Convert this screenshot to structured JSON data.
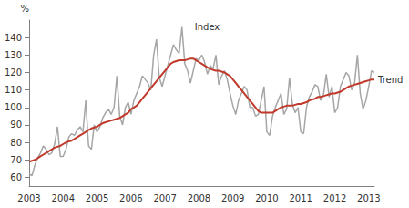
{
  "chart_data": {
    "type": "line",
    "y_label": "%",
    "categories": [
      "2003",
      null,
      null,
      null,
      null,
      null,
      null,
      null,
      null,
      null,
      null,
      null,
      "2004",
      null,
      null,
      null,
      null,
      null,
      null,
      null,
      null,
      null,
      null,
      null,
      "2005",
      null,
      null,
      null,
      null,
      null,
      null,
      null,
      null,
      null,
      null,
      null,
      "2006",
      null,
      null,
      null,
      null,
      null,
      null,
      null,
      null,
      null,
      null,
      null,
      "2007",
      null,
      null,
      null,
      null,
      null,
      null,
      null,
      null,
      null,
      null,
      null,
      "2008",
      null,
      null,
      null,
      null,
      null,
      null,
      null,
      null,
      null,
      null,
      null,
      "2009",
      null,
      null,
      null,
      null,
      null,
      null,
      null,
      null,
      null,
      null,
      null,
      "2010",
      null,
      null,
      null,
      null,
      null,
      null,
      null,
      null,
      null,
      null,
      null,
      "2011",
      null,
      null,
      null,
      null,
      null,
      null,
      null,
      null,
      null,
      null,
      null,
      "2012",
      null,
      null,
      null,
      null,
      null,
      null,
      null,
      null,
      null,
      null,
      null,
      "2013",
      null,
      null
    ],
    "series": [
      {
        "name": "Index",
        "color": "#a6a6a6",
        "values": [
          62,
          61,
          67,
          71,
          74,
          78,
          76,
          73,
          74,
          79,
          89,
          72,
          72,
          76,
          83,
          85,
          84,
          87,
          89,
          86,
          104,
          78,
          76,
          90,
          86,
          89,
          94,
          97,
          99,
          96,
          100,
          118,
          95,
          90,
          100,
          103,
          96,
          104,
          108,
          112,
          118,
          116,
          114,
          110,
          130,
          139,
          117,
          112,
          118,
          124,
          130,
          136,
          133,
          131,
          146,
          125,
          121,
          114,
          121,
          128,
          127,
          130,
          126,
          119,
          124,
          122,
          130,
          113,
          118,
          121,
          116,
          108,
          101,
          96,
          104,
          108,
          112,
          110,
          100,
          100,
          95,
          96,
          104,
          112,
          86,
          84,
          95,
          100,
          104,
          108,
          96,
          99,
          117,
          102,
          97,
          100,
          86,
          85,
          100,
          106,
          109,
          113,
          112,
          104,
          107,
          119,
          106,
          112,
          97,
          100,
          112,
          116,
          120,
          118,
          110,
          114,
          130,
          108,
          99,
          104,
          112,
          121,
          120
        ]
      },
      {
        "name": "Trend",
        "color": "#c0392b",
        "values": [
          69,
          69.5,
          70,
          71,
          72,
          73,
          74,
          75,
          76,
          77,
          77.5,
          78,
          79,
          80,
          80.5,
          81,
          82,
          83,
          84,
          85,
          86,
          87,
          88,
          88.5,
          89,
          90,
          91,
          91.5,
          92,
          92.5,
          93,
          93.5,
          94,
          95,
          96,
          97,
          99,
          100,
          101,
          103,
          105,
          107,
          109,
          111,
          113,
          115,
          117,
          119,
          121,
          123,
          125,
          126,
          126.5,
          127,
          127,
          127,
          127.5,
          128,
          128,
          127,
          126,
          125,
          124,
          123,
          122,
          121.5,
          121,
          121,
          120.5,
          120,
          119,
          118,
          116,
          114,
          112,
          110,
          108,
          106,
          104,
          102,
          100,
          98,
          97,
          97,
          97,
          97,
          97,
          98,
          99,
          100,
          100.5,
          101,
          101,
          101,
          101.5,
          102,
          102,
          102.5,
          103,
          104,
          104.5,
          105,
          106,
          106,
          106.5,
          107,
          107.5,
          108,
          108,
          108.5,
          109,
          110,
          111,
          112,
          112.5,
          113,
          113.5,
          114,
          114.5,
          115,
          115.5,
          116,
          116
        ]
      }
    ],
    "ylim": [
      55,
      150
    ],
    "yticks": [
      60,
      70,
      80,
      90,
      100,
      110,
      120,
      130,
      140
    ],
    "grid": false
  }
}
